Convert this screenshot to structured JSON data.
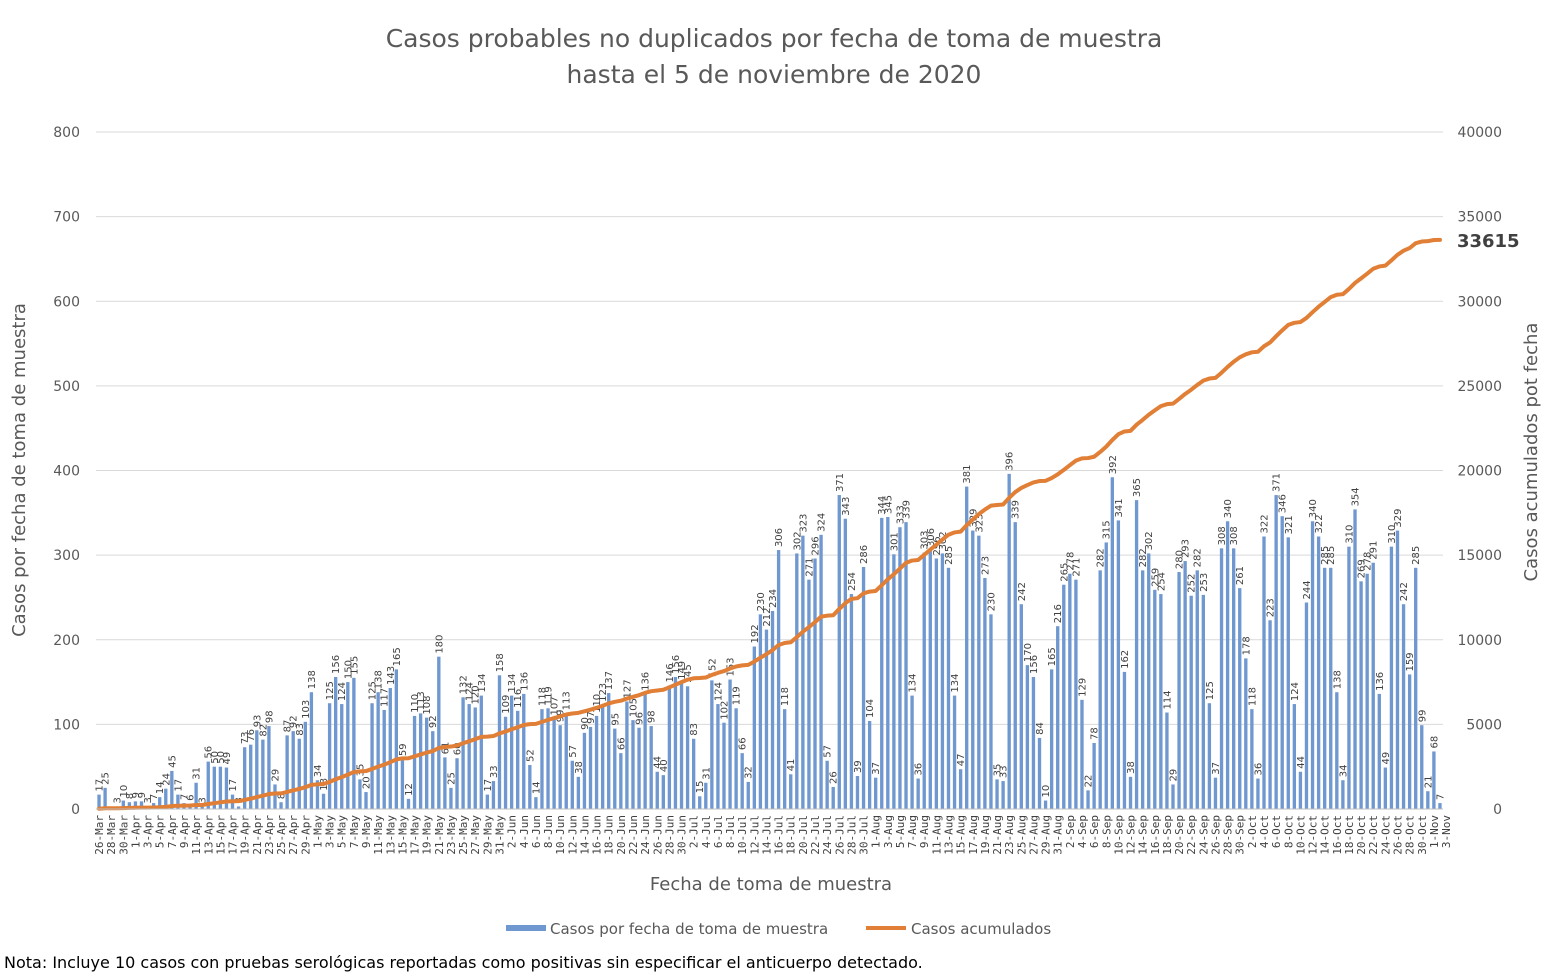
{
  "footnote": "Nota: Incluye 10 casos con pruebas serológicas reportadas como positivas sin especificar el anticuerpo detectado.",
  "chart_data": {
    "type": "bar",
    "title": [
      "Casos probables no duplicados por fecha de toma de muestra",
      "hasta el  5 de noviembre de 2020"
    ],
    "xlabel": "Fecha de toma de muestra",
    "ylabel": "Casos por fecha de toma de muestra",
    "y2label": "Casos acumulados pot fecha",
    "ylim": [
      0,
      800
    ],
    "y2lim": [
      0,
      40000
    ],
    "yticks": [
      "0",
      "100",
      "200",
      "300",
      "400",
      "500",
      "600",
      "700",
      "800"
    ],
    "y2ticks": [
      "0",
      "5000",
      "10000",
      "15000",
      "20000",
      "25000",
      "30000",
      "35000",
      "40000"
    ],
    "grid": true,
    "legend_position": "bottom",
    "colors": {
      "bars": "#6f97d0",
      "line": "#e07f35",
      "grid": "#d9d9d9",
      "text": "#595959"
    },
    "start_date": "2020-03-26",
    "x_tick_labels": [
      "26-Mar",
      "28-Mar",
      "30-Mar",
      "1-Apr",
      "3-Apr",
      "5-Apr",
      "7-Apr",
      "9-Apr",
      "11-Apr",
      "13-Apr",
      "15-Apr",
      "17-Apr",
      "19-Apr",
      "21-Apr",
      "23-Apr",
      "25-Apr",
      "27-Apr",
      "29-Apr",
      "1-May",
      "3-May",
      "5-May",
      "7-May",
      "9-May",
      "11-May",
      "13-May",
      "15-May",
      "17-May",
      "19-May",
      "21-May",
      "23-May",
      "25-May",
      "27-May",
      "29-May",
      "31-May",
      "2-Jun",
      "4-Jun",
      "6-Jun",
      "8-Jun",
      "10-Jun",
      "12-Jun",
      "14-Jun",
      "16-Jun",
      "18-Jun",
      "20-Jun",
      "22-Jun",
      "24-Jun",
      "26-Jun",
      "28-Jun",
      "30-Jun",
      "2-Jul",
      "4-Jul",
      "6-Jul",
      "8-Jul",
      "10-Jul",
      "12-Jul",
      "14-Jul",
      "16-Jul",
      "18-Jul",
      "20-Jul",
      "22-Jul",
      "24-Jul",
      "26-Jul",
      "28-Jul",
      "30-Jul",
      "1-Aug",
      "3-Aug",
      "5-Aug",
      "7-Aug",
      "9-Aug",
      "11-Aug",
      "13-Aug",
      "15-Aug",
      "17-Aug",
      "19-Aug",
      "21-Aug",
      "23-Aug",
      "25-Aug",
      "27-Aug",
      "29-Aug",
      "31-Aug",
      "2-Sep",
      "4-Sep",
      "6-Sep",
      "8-Sep",
      "10-Sep",
      "12-Sep",
      "14-Sep",
      "16-Sep",
      "18-Sep",
      "20-Sep",
      "22-Sep",
      "24-Sep",
      "26-Sep",
      "28-Sep",
      "30-Sep",
      "2-Oct",
      "4-Oct",
      "6-Oct",
      "8-Oct",
      "10-Oct",
      "12-Oct",
      "14-Oct",
      "16-Oct",
      "18-Oct",
      "20-Oct",
      "22-Oct",
      "24-Oct",
      "26-Oct",
      "28-Oct",
      "30-Oct",
      "1-Nov",
      "3-Nov"
    ],
    "series": [
      {
        "name": "Casos por fecha de toma de muestra",
        "type": "bar",
        "values": [
          17,
          25,
          0,
          3,
          10,
          8,
          9,
          9,
          3,
          7,
          14,
          24,
          45,
          17,
          7,
          6,
          31,
          3,
          56,
          50,
          50,
          49,
          17,
          3,
          73,
          76,
          93,
          82,
          98,
          29,
          8,
          87,
          92,
          83,
          103,
          138,
          34,
          18,
          125,
          156,
          124,
          150,
          155,
          35,
          20,
          125,
          138,
          117,
          143,
          165,
          59,
          12,
          110,
          113,
          108,
          92,
          180,
          61,
          25,
          60,
          132,
          124,
          120,
          134,
          17,
          33,
          158,
          109,
          134,
          116,
          136,
          52,
          14,
          118,
          119,
          107,
          99,
          113,
          57,
          38,
          90,
          97,
          110,
          123,
          137,
          95,
          66,
          127,
          105,
          96,
          136,
          98,
          44,
          40,
          146,
          156,
          149,
          145,
          83,
          15,
          31,
          152,
          124,
          102,
          153,
          119,
          66,
          32,
          192,
          230,
          212,
          234,
          306,
          118,
          41,
          302,
          323,
          271,
          296,
          324,
          57,
          26,
          371,
          343,
          254,
          39,
          286,
          104,
          37,
          344,
          345,
          301,
          333,
          339,
          134,
          36,
          303,
          306,
          296,
          302,
          285,
          134,
          47,
          381,
          329,
          323,
          273,
          230,
          35,
          33,
          396,
          339,
          242,
          170,
          156,
          84,
          10,
          165,
          216,
          265,
          278,
          271,
          129,
          22,
          78,
          282,
          315,
          392,
          341,
          162,
          38,
          365,
          282,
          302,
          259,
          254,
          114,
          29,
          280,
          293,
          252,
          282,
          253,
          125,
          37,
          308,
          340,
          308,
          261,
          178,
          118,
          36,
          322,
          223,
          371,
          346,
          321,
          124,
          44,
          244,
          340,
          322,
          285,
          285,
          138,
          34,
          310,
          354,
          269,
          278,
          291,
          136,
          49,
          310,
          329,
          242,
          159,
          285,
          99,
          21,
          68,
          7
        ]
      },
      {
        "name": "Casos acumulados",
        "type": "line",
        "final_value_label": "33615"
      }
    ]
  }
}
